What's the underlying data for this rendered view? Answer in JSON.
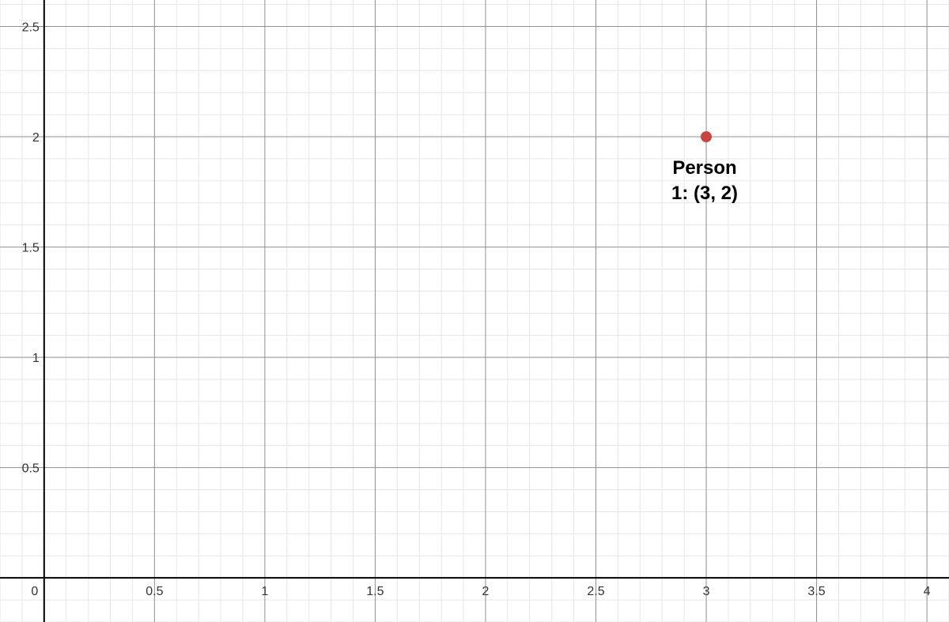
{
  "chart_data": {
    "type": "scatter",
    "title": "",
    "xlabel": "",
    "ylabel": "",
    "xlim": [
      -0.2,
      4.1
    ],
    "ylim": [
      -0.2,
      2.62
    ],
    "grid": true,
    "minor_grid_step": 0.1,
    "major_grid_step": 0.5,
    "x_ticks": [
      "0",
      "0.5",
      "1",
      "1.5",
      "2",
      "2.5",
      "3",
      "3.5",
      "4"
    ],
    "y_ticks": [
      "0.5",
      "1",
      "1.5",
      "2",
      "2.5"
    ],
    "points": [
      {
        "x": 3,
        "y": 2,
        "label_line1": "Person",
        "label_line2": "1: (3, 2)",
        "color": "#c74440"
      }
    ],
    "colors": {
      "minor_grid": "#e6e6e6",
      "major_grid": "#8f8f8f",
      "axis": "#000000",
      "point": "#c74440"
    }
  }
}
